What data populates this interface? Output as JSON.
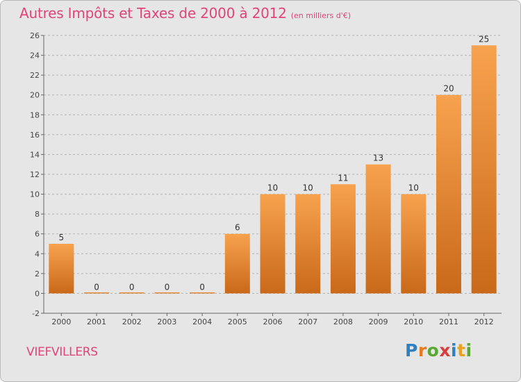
{
  "header": {
    "title": "Autres Impôts et Taxes de 2000 à 2012",
    "unit": "(en milliers d'€)"
  },
  "footer": {
    "commune": "VIEFVILLERS",
    "logo_letters": [
      {
        "ch": "P",
        "color": "#2f7fc1"
      },
      {
        "ch": "r",
        "color": "#e8791f"
      },
      {
        "ch": "o",
        "color": "#5aa832"
      },
      {
        "ch": "x",
        "color": "#d93c3c"
      },
      {
        "ch": "i",
        "color": "#2f7fc1"
      },
      {
        "ch": "t",
        "color": "#e8a21f"
      },
      {
        "ch": "i",
        "color": "#5aa832"
      }
    ]
  },
  "colors": {
    "accent": "#e0447a",
    "bar_top": "#f7a24e",
    "bar_bottom": "#c9691a",
    "grid": "#b4b4b4",
    "axis_text": "#444444"
  },
  "chart_data": {
    "type": "bar",
    "title": "Autres Impôts et Taxes de 2000 à 2012",
    "subtitle": "(en milliers d'€)",
    "categories": [
      "2000",
      "2001",
      "2002",
      "2003",
      "2004",
      "2005",
      "2006",
      "2007",
      "2008",
      "2009",
      "2010",
      "2011",
      "2012"
    ],
    "values": [
      5,
      0,
      0,
      0,
      0,
      6,
      10,
      10,
      11,
      13,
      10,
      20,
      25
    ],
    "ylim": [
      -2,
      26
    ],
    "yticks": [
      -2,
      0,
      2,
      4,
      6,
      8,
      10,
      12,
      14,
      16,
      18,
      20,
      22,
      24,
      26
    ],
    "grid": true,
    "data_labels": true
  }
}
